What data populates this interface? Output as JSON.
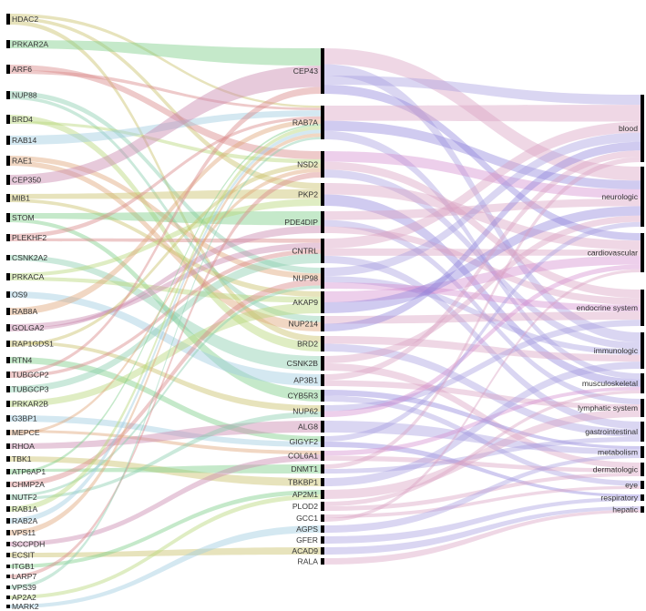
{
  "diagram": {
    "type": "sankey",
    "columns": [
      {
        "id": "left",
        "nodes": [
          "HDAC2",
          "PRKAR2A",
          "ARF6",
          "NUP88",
          "BRD4",
          "RAB14",
          "RAE1",
          "CEP350",
          "MIB1",
          "STOM",
          "PLEKHF2",
          "CSNK2A2",
          "PRKACA",
          "OS9",
          "RAB8A",
          "GOLGA2",
          "RAP1GDS1",
          "RTN4",
          "TUBGCP2",
          "TUBGCP3",
          "PRKAR2B",
          "G3BP1",
          "MEPCE",
          "RHOA",
          "TBK1",
          "ATP6AP1",
          "CHMP2A",
          "NUTF2",
          "RAB1A",
          "RAB2A",
          "VPS11",
          "SCCPDH",
          "ECSIT",
          "ITGB1",
          "LARP7",
          "VPS39",
          "AP2A2",
          "MARK2"
        ]
      },
      {
        "id": "middle",
        "nodes": [
          "CEP43",
          "RAB7A",
          "NSD2",
          "PKP2",
          "PDE4DIP",
          "CNTRL",
          "NUP98",
          "AKAP9",
          "NUP214",
          "BRD2",
          "CSNK2B",
          "AP3B1",
          "CYB5R3",
          "NUP62",
          "ALG8",
          "GIGYF2",
          "COL6A1",
          "DNMT1",
          "TBKBP1",
          "AP2M1",
          "PLOD2",
          "GCC1",
          "AGPS",
          "GFER",
          "ACAD9",
          "RALA"
        ]
      },
      {
        "id": "right",
        "nodes": [
          "blood",
          "neurologic",
          "cardiovascular",
          "endocrine system",
          "immunologic",
          "musculoskeletal",
          "lymphatic system",
          "gastrointestinal",
          "metabolism",
          "dermatologic",
          "eye",
          "respiratory",
          "hepatic"
        ]
      }
    ],
    "link_colors": [
      "#c9c06a",
      "#7fcf8a",
      "#d98a8a",
      "#8ccfb0",
      "#b9d67a",
      "#9fcde0",
      "#e0a67a",
      "#c98ab0",
      "#a89ee0",
      "#d9a0c0",
      "#8f84dc",
      "#d38ccf"
    ],
    "node_color": "#000000"
  }
}
